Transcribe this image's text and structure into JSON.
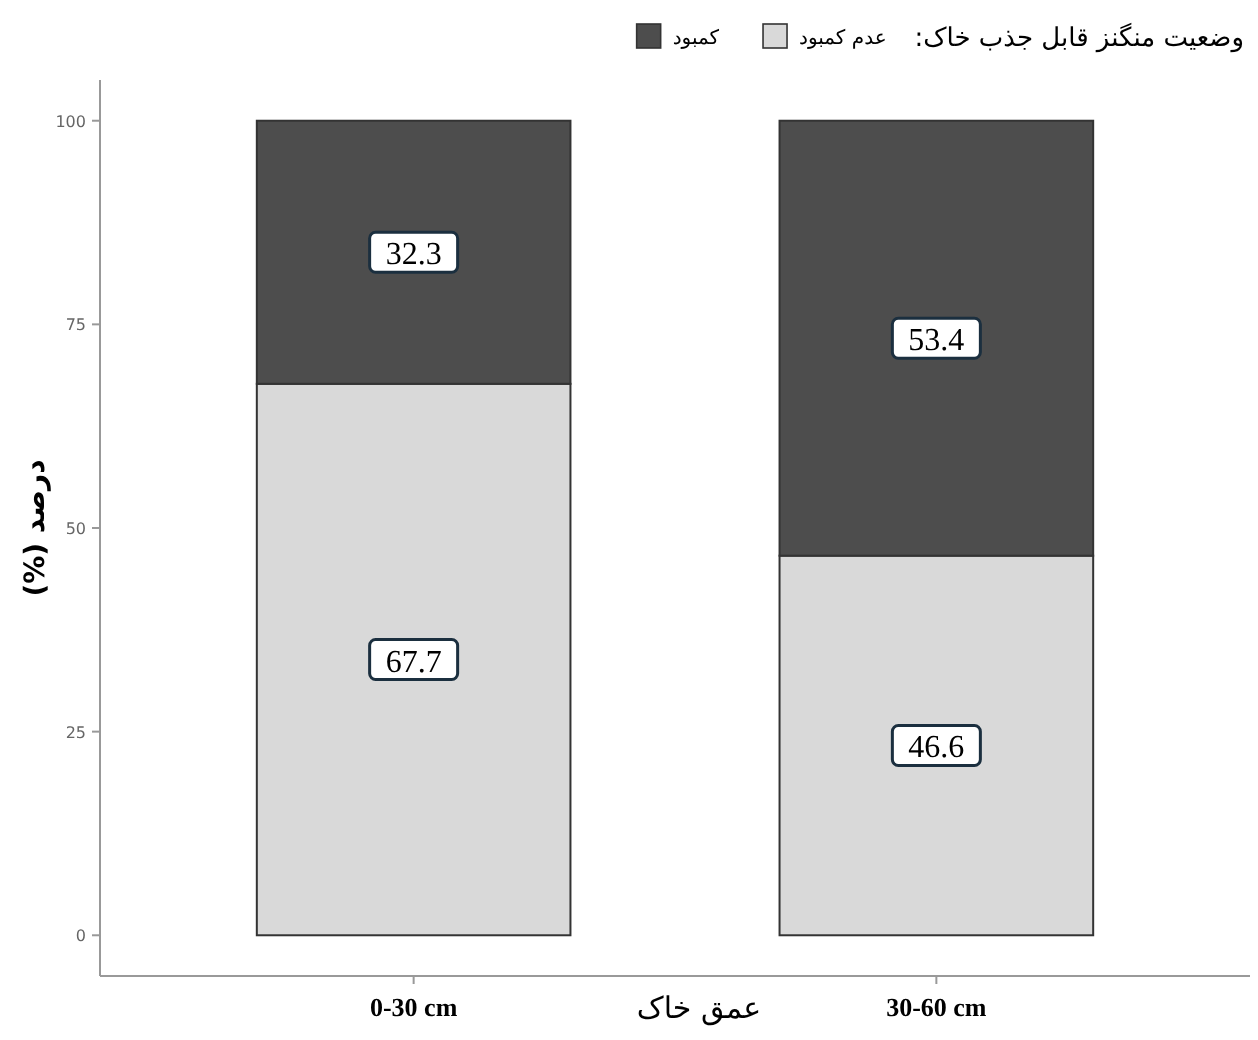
{
  "chart_data": {
    "type": "bar",
    "stacked": true,
    "legend_title": "وضعیت منگنز قابل جذب خاک:",
    "xlabel": "عمق خاک",
    "ylabel": "درصد (%)",
    "categories": [
      "0-30 cm",
      "30-60 cm"
    ],
    "series": [
      {
        "name": "عدم کمبود",
        "color": "#d9d9d9",
        "values": [
          67.7,
          46.6
        ]
      },
      {
        "name": "کمبود",
        "color": "#4d4d4d",
        "values": [
          32.3,
          53.4
        ]
      }
    ],
    "ylim": [
      -5,
      105
    ],
    "yticks": [
      0,
      25,
      50,
      75,
      100
    ],
    "data_labels": true,
    "legend": "top",
    "grid": false
  }
}
